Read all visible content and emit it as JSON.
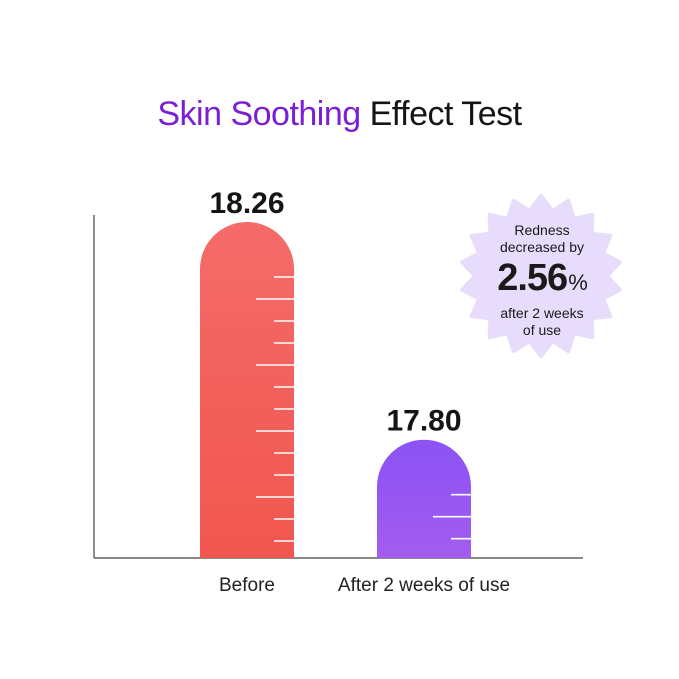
{
  "title": {
    "accent": "Skin Soothing",
    "rest": " Effect Test"
  },
  "badge": {
    "line1": "Redness",
    "line2": "decreased by",
    "value": "2.56",
    "unit": "%",
    "line3": "after 2 weeks",
    "line4": "of use",
    "color": "#e8dcfc"
  },
  "chart_data": {
    "type": "bar",
    "categories": [
      "Before",
      "After 2 weeks of use"
    ],
    "values": [
      18.26,
      17.8
    ],
    "value_labels": [
      "18.26",
      "17.80"
    ],
    "title": "Skin Soothing Effect Test",
    "xlabel": "",
    "ylabel": "",
    "grid": false,
    "colors": [
      {
        "top": "#f46b69",
        "bottom": "#f1564f"
      },
      {
        "top": "#8b52f5",
        "bottom": "#a35cf0"
      }
    ]
  }
}
